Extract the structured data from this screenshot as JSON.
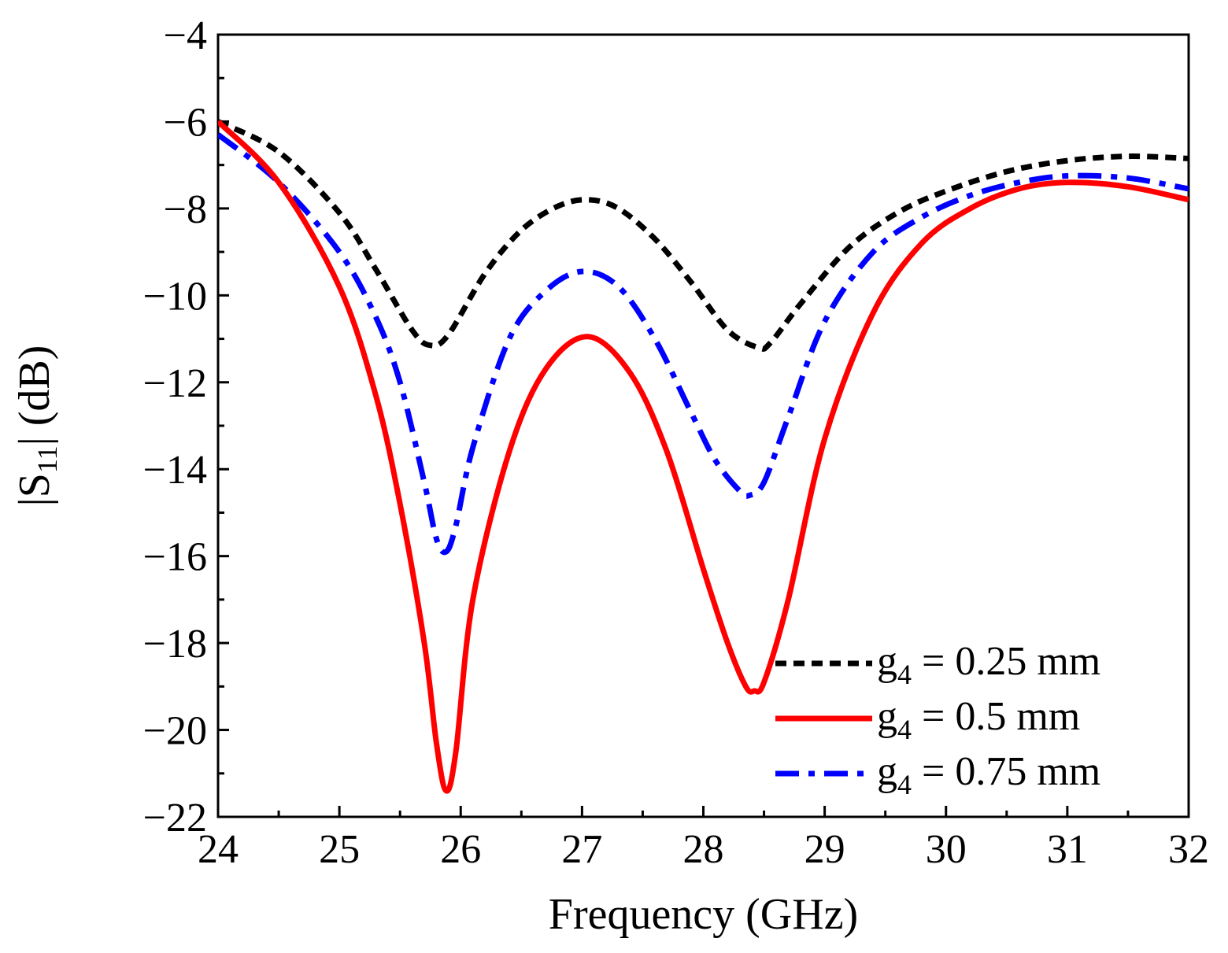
{
  "chart_data": {
    "type": "line",
    "title": "",
    "xlabel": "Frequency (GHz)",
    "ylabel": {
      "prefix": "|S",
      "subscript": "11",
      "suffix": "| (dB)"
    },
    "xlim": [
      24,
      32
    ],
    "ylim": [
      -22,
      -4
    ],
    "x_ticks": [
      24,
      25,
      26,
      27,
      28,
      29,
      30,
      31,
      32
    ],
    "y_ticks": [
      -22,
      -20,
      -18,
      -16,
      -14,
      -12,
      -10,
      -8,
      -6,
      -4
    ],
    "x_tick_labels": [
      "24",
      "25",
      "26",
      "27",
      "28",
      "29",
      "30",
      "31",
      "32"
    ],
    "y_tick_labels": [
      "−22",
      "−20",
      "−18",
      "−16",
      "−14",
      "−12",
      "−10",
      "−8",
      "−6",
      "−4"
    ],
    "grid": false,
    "legend_position": "bottom-right",
    "series": [
      {
        "name": "g4 = 0.25 mm",
        "legend": {
          "sym": "g",
          "sub": "4",
          "rest": " = 0.25 mm"
        },
        "color": "#000000",
        "style": "dotted",
        "x": [
          24.0,
          24.5,
          25.0,
          25.3,
          25.6,
          25.75,
          25.9,
          26.2,
          26.5,
          26.8,
          27.05,
          27.3,
          27.6,
          27.9,
          28.2,
          28.45,
          28.55,
          28.8,
          29.2,
          29.6,
          30.0,
          30.5,
          31.0,
          31.5,
          32.0
        ],
        "y": [
          -6.0,
          -6.7,
          -8.1,
          -9.4,
          -10.8,
          -11.15,
          -10.9,
          -9.5,
          -8.5,
          -7.95,
          -7.8,
          -8.0,
          -8.7,
          -9.7,
          -10.8,
          -11.2,
          -11.1,
          -10.2,
          -8.9,
          -8.1,
          -7.6,
          -7.15,
          -6.9,
          -6.8,
          -6.85
        ]
      },
      {
        "name": "g4 = 0.5 mm",
        "legend": {
          "sym": "g",
          "sub": "4",
          "rest": " = 0.5 mm"
        },
        "color": "#ff0000",
        "style": "solid",
        "x": [
          24.0,
          24.5,
          25.0,
          25.3,
          25.5,
          25.7,
          25.8,
          25.88,
          25.96,
          26.1,
          26.4,
          26.7,
          27.05,
          27.4,
          27.7,
          28.0,
          28.2,
          28.35,
          28.42,
          28.5,
          28.7,
          29.0,
          29.4,
          29.8,
          30.2,
          30.6,
          31.0,
          31.5,
          32.0
        ],
        "y": [
          -6.0,
          -7.4,
          -9.8,
          -12.3,
          -14.8,
          -18.0,
          -20.3,
          -21.4,
          -20.5,
          -17.0,
          -13.6,
          -11.7,
          -10.95,
          -11.8,
          -13.6,
          -16.3,
          -18.0,
          -19.0,
          -19.1,
          -18.9,
          -17.0,
          -13.3,
          -10.4,
          -8.8,
          -8.0,
          -7.55,
          -7.4,
          -7.5,
          -7.8
        ]
      },
      {
        "name": "g4 = 0.75 mm",
        "legend": {
          "sym": "g",
          "sub": "4",
          "rest": " = 0.75 mm"
        },
        "color": "#0000ff",
        "style": "dashdot",
        "x": [
          24.0,
          24.5,
          25.0,
          25.3,
          25.5,
          25.7,
          25.8,
          25.88,
          25.96,
          26.1,
          26.4,
          26.7,
          27.0,
          27.3,
          27.6,
          27.9,
          28.1,
          28.3,
          28.38,
          28.5,
          28.7,
          29.0,
          29.4,
          29.8,
          30.2,
          30.6,
          31.0,
          31.5,
          32.0
        ],
        "y": [
          -6.3,
          -7.4,
          -9.0,
          -10.5,
          -12.0,
          -14.3,
          -15.6,
          -15.9,
          -15.3,
          -13.5,
          -11.0,
          -9.9,
          -9.45,
          -9.8,
          -11.0,
          -12.7,
          -13.8,
          -14.5,
          -14.6,
          -14.3,
          -12.8,
          -10.6,
          -9.0,
          -8.2,
          -7.7,
          -7.4,
          -7.25,
          -7.3,
          -7.55
        ]
      }
    ]
  }
}
